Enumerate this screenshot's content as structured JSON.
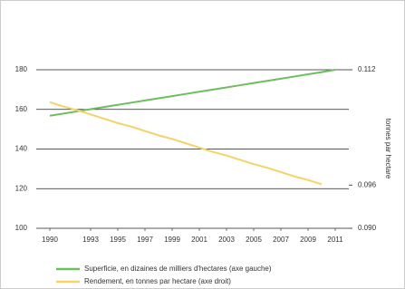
{
  "chart_data": {
    "type": "line",
    "ylabel2": "tonnes par hectare",
    "x": [
      1990,
      1991,
      1992,
      1993,
      1994,
      1995,
      1996,
      1997,
      1998,
      1999,
      2000,
      2001,
      2002,
      2003,
      2004,
      2005,
      2006,
      2007,
      2008,
      2009,
      2010,
      2011
    ],
    "xlim": [
      1989,
      2012
    ],
    "xticks": [
      1990,
      1993,
      1995,
      1997,
      1999,
      2001,
      2003,
      2005,
      2007,
      2009,
      2011
    ],
    "ylim": [
      100,
      180
    ],
    "yticks": [
      100,
      120,
      140,
      160,
      180
    ],
    "y2lim": [
      0.09,
      0.112
    ],
    "y2ticks": [
      {
        "value": 0.09,
        "label": "0.090"
      },
      {
        "value": 0.096,
        "label": "0.096"
      },
      {
        "value": 0.112,
        "label": "0.112"
      }
    ],
    "grid": true,
    "legend": "bottom",
    "series": [
      {
        "name": "Superficie, en dizaines de milliers d'hectares (axe gauche)",
        "color": "#6cbf5c",
        "values": [
          156.8,
          157.9,
          159.0,
          160.1,
          161.2,
          162.3,
          163.4,
          164.5,
          165.6,
          166.7,
          167.8,
          168.9,
          170.0,
          171.1,
          172.2,
          173.3,
          174.4,
          175.5,
          176.6,
          177.7,
          178.8,
          180.0
        ]
      },
      {
        "name": "Rendement, en tonnes par hectare (axe droit)",
        "color": "#f2d468",
        "axis": "y2",
        "values": [
          0.1075,
          0.1069,
          0.1064,
          0.1058,
          0.1052,
          0.1046,
          0.1041,
          0.1035,
          0.1029,
          0.1024,
          0.1018,
          0.1012,
          0.1006,
          0.1001,
          0.0995,
          0.0989,
          0.0984,
          0.0978,
          0.0972,
          0.0967,
          0.0961,
          null
        ]
      }
    ]
  }
}
